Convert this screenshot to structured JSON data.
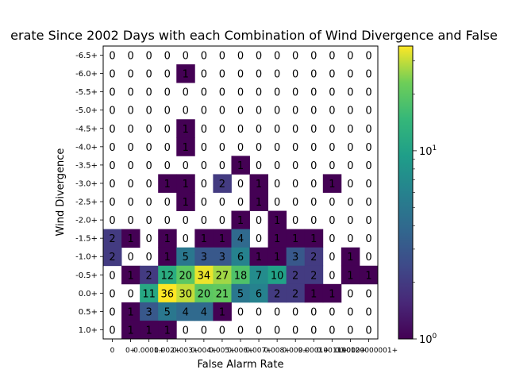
{
  "chart_data": {
    "type": "heatmap",
    "title": "erate Since 2002 Days with each Combination of Wind Divergence and False",
    "xlabel": "False Alarm Rate",
    "ylabel": "Wind Divergence",
    "x_tick_labels": [
      "0",
      "0+",
      "0.0001+",
      "0.002+",
      "0.003+",
      "0.004+",
      "0.005+",
      "0.006+",
      "0.007+",
      "0.008+",
      "0.009+",
      "0.0001+",
      "0.0011+",
      "0.0012+",
      "0.0000000001+"
    ],
    "x_tick_labels_note": "",
    "y_tick_labels": [
      "-6.5+",
      "-6.0+",
      "-5.5+",
      "-5.0+",
      "-4.5+",
      "-4.0+",
      "-3.5+",
      "-3.0+",
      "-2.5+",
      "-2.0+",
      "-1.5+",
      "-1.0+",
      "-0.5+",
      "0.0+",
      "0.5+",
      "1.0+"
    ],
    "values": [
      [
        0,
        0,
        0,
        0,
        0,
        0,
        0,
        0,
        0,
        0,
        0,
        0,
        0,
        0,
        0
      ],
      [
        0,
        0,
        0,
        0,
        1,
        0,
        0,
        0,
        0,
        0,
        0,
        0,
        0,
        0,
        0
      ],
      [
        0,
        0,
        0,
        0,
        0,
        0,
        0,
        0,
        0,
        0,
        0,
        0,
        0,
        0,
        0
      ],
      [
        0,
        0,
        0,
        0,
        0,
        0,
        0,
        0,
        0,
        0,
        0,
        0,
        0,
        0,
        0
      ],
      [
        0,
        0,
        0,
        0,
        1,
        0,
        0,
        0,
        0,
        0,
        0,
        0,
        0,
        0,
        0
      ],
      [
        0,
        0,
        0,
        0,
        1,
        0,
        0,
        0,
        0,
        0,
        0,
        0,
        0,
        0,
        0
      ],
      [
        0,
        0,
        0,
        0,
        0,
        0,
        0,
        1,
        0,
        0,
        0,
        0,
        0,
        0,
        0
      ],
      [
        0,
        0,
        0,
        1,
        1,
        0,
        2,
        0,
        1,
        0,
        0,
        0,
        1,
        0,
        0
      ],
      [
        0,
        0,
        0,
        0,
        1,
        0,
        0,
        0,
        1,
        0,
        0,
        0,
        0,
        0,
        0
      ],
      [
        0,
        0,
        0,
        0,
        0,
        0,
        0,
        1,
        0,
        1,
        0,
        0,
        0,
        0,
        0
      ],
      [
        2,
        1,
        0,
        1,
        0,
        1,
        1,
        4,
        0,
        1,
        1,
        1,
        0,
        0,
        0
      ],
      [
        2,
        0,
        0,
        1,
        5,
        3,
        3,
        6,
        1,
        1,
        3,
        2,
        0,
        1,
        0
      ],
      [
        0,
        1,
        2,
        12,
        20,
        34,
        27,
        18,
        7,
        10,
        2,
        2,
        0,
        1,
        1
      ],
      [
        0,
        0,
        11,
        36,
        30,
        20,
        21,
        5,
        6,
        2,
        2,
        1,
        1,
        0,
        0
      ],
      [
        0,
        1,
        3,
        5,
        4,
        4,
        1,
        0,
        0,
        0,
        0,
        0,
        0,
        0,
        0
      ],
      [
        0,
        1,
        1,
        1,
        0,
        0,
        0,
        0,
        0,
        0,
        0,
        0,
        0,
        0,
        0
      ]
    ],
    "colorbar": {
      "scale": "log",
      "range": [
        1,
        36
      ],
      "tick_labels": [
        "10^0",
        "10^1"
      ],
      "colormap": "viridis"
    },
    "grid": false,
    "colors": {
      "viridis_low": "#440154",
      "viridis_high": "#fde725"
    }
  }
}
